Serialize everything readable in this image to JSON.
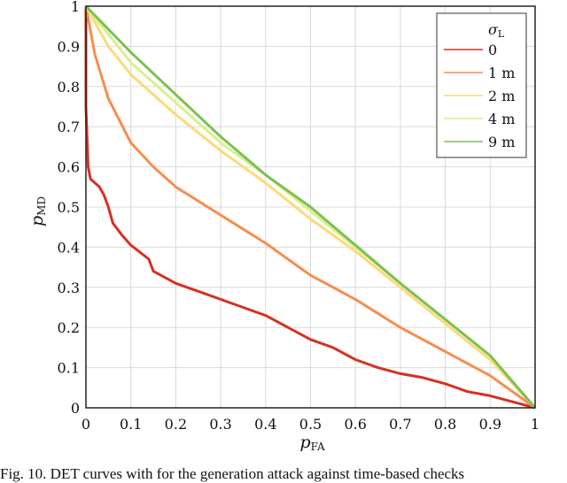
{
  "chart_data": {
    "type": "line",
    "title": "",
    "xlabel": "p",
    "xlabel_sub": "FA",
    "ylabel": "p",
    "ylabel_sub": "MD",
    "xlim": [
      0,
      1
    ],
    "ylim": [
      0,
      1
    ],
    "xticks": [
      "0",
      "0.1",
      "0.2",
      "0.3",
      "0.4",
      "0.5",
      "0.6",
      "0.7",
      "0.8",
      "0.9",
      "1"
    ],
    "yticks": [
      "0",
      "0.1",
      "0.2",
      "0.3",
      "0.4",
      "0.5",
      "0.6",
      "0.7",
      "0.8",
      "0.9",
      "1"
    ],
    "grid": true,
    "legend_title": "σ",
    "legend_title_sub": "L",
    "legend_placement": "top-right",
    "series": [
      {
        "name": "0",
        "color": "#d7301f",
        "points": [
          [
            0,
            1
          ],
          [
            0,
            0.75
          ],
          [
            0.005,
            0.6
          ],
          [
            0.01,
            0.57
          ],
          [
            0.03,
            0.55
          ],
          [
            0.04,
            0.53
          ],
          [
            0.05,
            0.5
          ],
          [
            0.06,
            0.46
          ],
          [
            0.08,
            0.43
          ],
          [
            0.1,
            0.405
          ],
          [
            0.14,
            0.37
          ],
          [
            0.15,
            0.34
          ],
          [
            0.2,
            0.31
          ],
          [
            0.25,
            0.29
          ],
          [
            0.3,
            0.27
          ],
          [
            0.35,
            0.25
          ],
          [
            0.4,
            0.23
          ],
          [
            0.45,
            0.2
          ],
          [
            0.5,
            0.17
          ],
          [
            0.55,
            0.15
          ],
          [
            0.6,
            0.12
          ],
          [
            0.65,
            0.1
          ],
          [
            0.7,
            0.085
          ],
          [
            0.75,
            0.075
          ],
          [
            0.8,
            0.06
          ],
          [
            0.85,
            0.04
          ],
          [
            0.9,
            0.03
          ],
          [
            0.95,
            0.015
          ],
          [
            1,
            0
          ]
        ]
      },
      {
        "name": "1 m",
        "color": "#f98c4f",
        "points": [
          [
            0,
            1
          ],
          [
            0.02,
            0.88
          ],
          [
            0.05,
            0.77
          ],
          [
            0.1,
            0.66
          ],
          [
            0.15,
            0.6
          ],
          [
            0.2,
            0.55
          ],
          [
            0.3,
            0.48
          ],
          [
            0.4,
            0.41
          ],
          [
            0.5,
            0.33
          ],
          [
            0.6,
            0.27
          ],
          [
            0.7,
            0.2
          ],
          [
            0.8,
            0.14
          ],
          [
            0.9,
            0.08
          ],
          [
            1,
            0
          ]
        ]
      },
      {
        "name": "2 m",
        "color": "#fed976",
        "points": [
          [
            0,
            1
          ],
          [
            0.05,
            0.9
          ],
          [
            0.1,
            0.83
          ],
          [
            0.2,
            0.73
          ],
          [
            0.3,
            0.64
          ],
          [
            0.4,
            0.56
          ],
          [
            0.5,
            0.47
          ],
          [
            0.6,
            0.39
          ],
          [
            0.7,
            0.3
          ],
          [
            0.8,
            0.21
          ],
          [
            0.9,
            0.12
          ],
          [
            1,
            0
          ]
        ]
      },
      {
        "name": "4 m",
        "color": "#d9ef8b",
        "points": [
          [
            0,
            1
          ],
          [
            0.1,
            0.86
          ],
          [
            0.2,
            0.76
          ],
          [
            0.3,
            0.66
          ],
          [
            0.4,
            0.58
          ],
          [
            0.5,
            0.49
          ],
          [
            0.6,
            0.4
          ],
          [
            0.7,
            0.31
          ],
          [
            0.8,
            0.22
          ],
          [
            0.9,
            0.13
          ],
          [
            1,
            0
          ]
        ]
      },
      {
        "name": "9 m",
        "color": "#7cc152",
        "points": [
          [
            0,
            1
          ],
          [
            0.1,
            0.885
          ],
          [
            0.2,
            0.78
          ],
          [
            0.3,
            0.675
          ],
          [
            0.4,
            0.58
          ],
          [
            0.5,
            0.5
          ],
          [
            0.6,
            0.405
          ],
          [
            0.7,
            0.31
          ],
          [
            0.8,
            0.22
          ],
          [
            0.9,
            0.13
          ],
          [
            1,
            0
          ]
        ]
      }
    ]
  },
  "caption": "Fig. 10.   DET curves with for the generation attack against time-based checks"
}
